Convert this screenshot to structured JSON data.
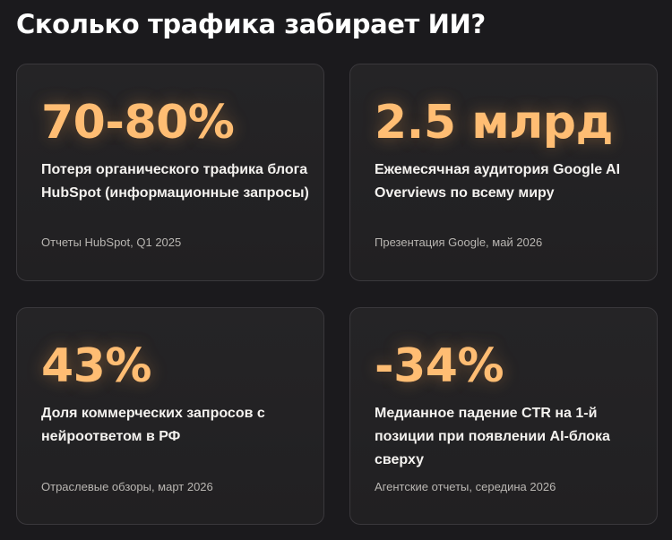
{
  "title": "Сколько трафика забирает ИИ?",
  "cards": [
    {
      "value": "70-80%",
      "description": "Потеря органического трафика блога HubSpot (информационные запросы)",
      "source": "Отчеты HubSpot, Q1 2025"
    },
    {
      "value": "2.5 млрд",
      "description": "Ежемесячная аудитория Google AI Overviews по всему миру",
      "source": "Презентация Google, май 2026"
    },
    {
      "value": "43%",
      "description": "Доля коммерческих запросов с нейроответом в РФ",
      "source": "Отраслевые обзоры, март 2026"
    },
    {
      "value": "-34%",
      "description": "Медианное падение CTR на 1-й позиции при появлении AI-блока сверху",
      "source": "Агентские отчеты, середина 2026"
    }
  ],
  "colors": {
    "background": "#1b1a1d",
    "card": "#232224",
    "accent": "#ffbd73",
    "text": "#f4f2ef",
    "muted": "#b9b6b2"
  }
}
